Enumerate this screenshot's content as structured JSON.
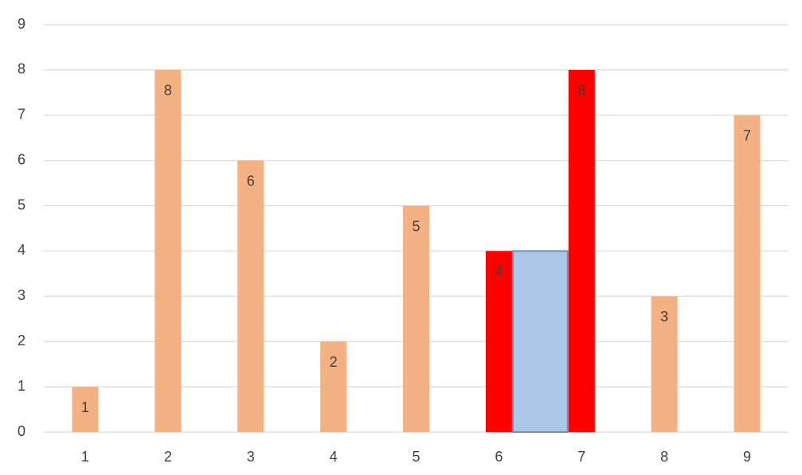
{
  "chart_data": {
    "type": "bar",
    "categories": [
      "1",
      "2",
      "3",
      "4",
      "5",
      "6",
      "7",
      "8",
      "9"
    ],
    "values": [
      1,
      8,
      6,
      2,
      5,
      4,
      8,
      3,
      7
    ],
    "colors": [
      "#f4b183",
      "#f4b183",
      "#f4b183",
      "#f4b183",
      "#f4b183",
      "#ff0000",
      "#ff0000",
      "#f4b183",
      "#f4b183"
    ],
    "highlight_area": {
      "span": [
        5,
        6
      ],
      "height": 4,
      "color": "#a9c8e8",
      "stroke": "#6f8fb8"
    },
    "ylim": [
      0,
      9
    ],
    "yticks": [
      0,
      1,
      2,
      3,
      4,
      5,
      6,
      7,
      8,
      9
    ],
    "grid": true
  }
}
